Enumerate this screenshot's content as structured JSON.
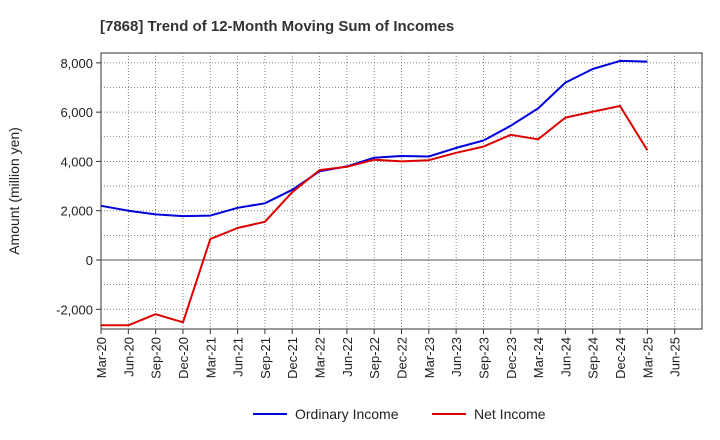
{
  "chart_data": {
    "type": "line",
    "title": "[7868]  Trend of 12-Month Moving Sum of Incomes",
    "ylabel": "Amount (million yen)",
    "xlabel": "",
    "ylim": [
      -2800,
      8400
    ],
    "yticks": [
      -2000,
      0,
      2000,
      4000,
      6000,
      8000
    ],
    "ytick_labels": [
      "-2,000",
      "0",
      "2,000",
      "4,000",
      "6,000",
      "8,000"
    ],
    "x_tick_labels": [
      "Mar-20",
      "Jun-20",
      "Sep-20",
      "Dec-20",
      "Mar-21",
      "Jun-21",
      "Sep-21",
      "Dec-21",
      "Mar-22",
      "Jun-22",
      "Sep-22",
      "Dec-22",
      "Mar-23",
      "Jun-23",
      "Sep-23",
      "Dec-23",
      "Mar-24",
      "Jun-24",
      "Sep-24",
      "Dec-24",
      "Mar-25",
      "Jun-25"
    ],
    "grid": true,
    "legend_position": "bottom",
    "series": [
      {
        "name": "Ordinary Income",
        "color": "#0000dd",
        "values": [
          2200,
          2000,
          1850,
          1780,
          1800,
          2120,
          2300,
          2850,
          3600,
          3800,
          4150,
          4220,
          4200,
          4550,
          4850,
          5450,
          6150,
          7200,
          7750,
          8080,
          8050
        ]
      },
      {
        "name": "Net Income",
        "color": "#dd0000",
        "values": [
          -2650,
          -2650,
          -2200,
          -2530,
          850,
          1300,
          1550,
          2750,
          3650,
          3780,
          4070,
          4000,
          4050,
          4350,
          4600,
          5080,
          4900,
          5780,
          6020,
          6250,
          4450
        ]
      }
    ]
  }
}
